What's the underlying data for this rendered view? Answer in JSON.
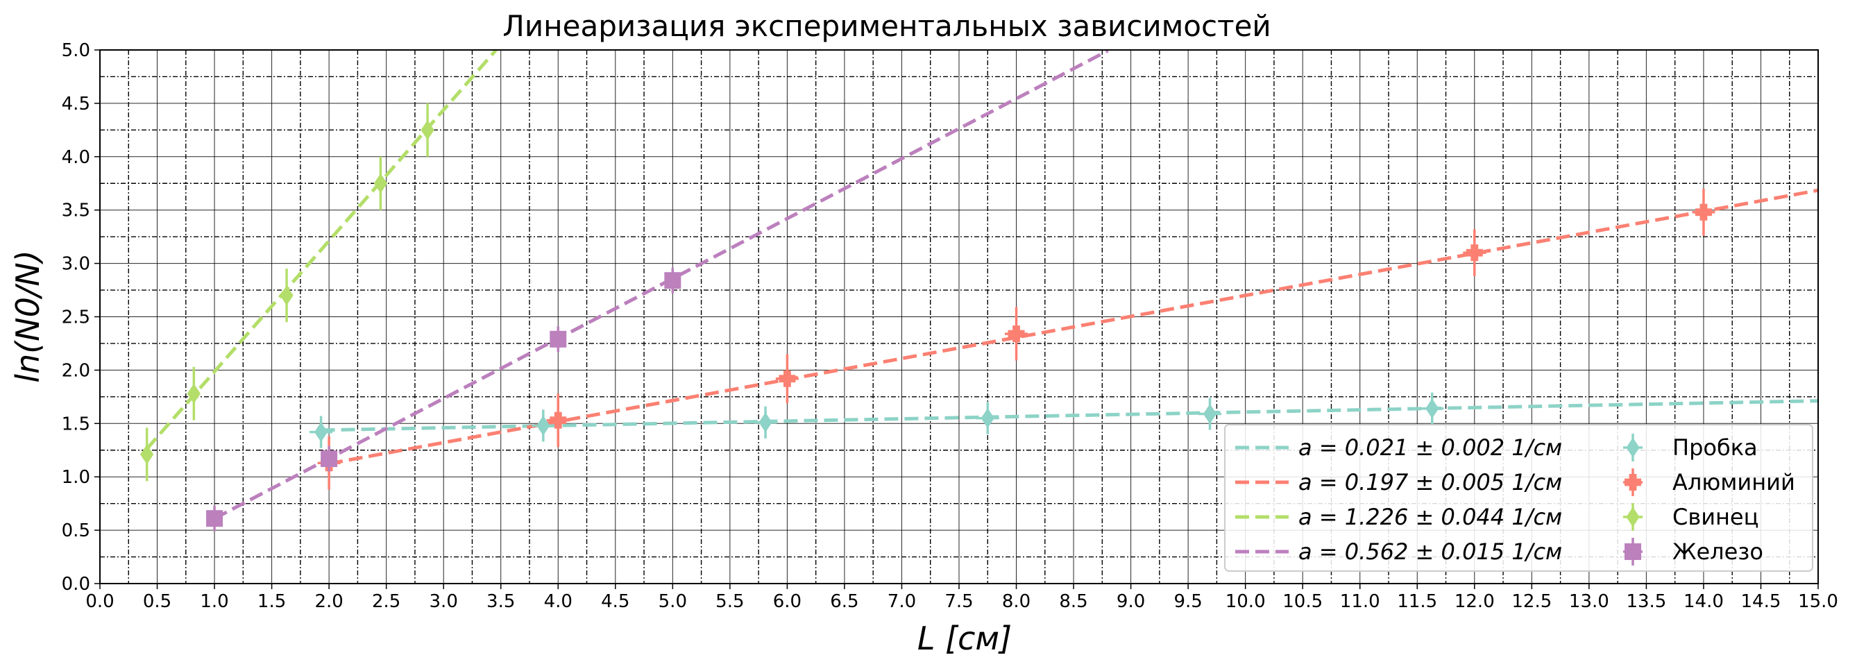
{
  "chart_data": {
    "type": "scatter",
    "title": "Линеаризация экспериментальных зависимостей",
    "xlabel": "L [см]",
    "ylabel": "ln(N0/N)",
    "xlim": [
      0,
      15
    ],
    "ylim": [
      0,
      5
    ],
    "x_ticks": [
      "0.0",
      "0.5",
      "1.0",
      "1.5",
      "2.0",
      "2.5",
      "3.0",
      "3.5",
      "4.0",
      "4.5",
      "5.0",
      "5.5",
      "6.0",
      "6.5",
      "7.0",
      "7.5",
      "8.0",
      "8.5",
      "9.0",
      "9.5",
      "10.0",
      "10.5",
      "11.0",
      "11.5",
      "12.0",
      "12.5",
      "13.0",
      "13.5",
      "14.0",
      "14.5",
      "15.0"
    ],
    "y_ticks": [
      "0.0",
      "0.5",
      "1.0",
      "1.5",
      "2.0",
      "2.5",
      "3.0",
      "3.5",
      "4.0",
      "4.5",
      "5.0"
    ],
    "grid": true,
    "legend_position": "lower-right",
    "series": [
      {
        "name": "Пробка",
        "color": "#8dd3c7",
        "marker": "diamond",
        "x": [
          1.93,
          3.87,
          5.81,
          7.75,
          9.69,
          11.63
        ],
        "y": [
          1.42,
          1.48,
          1.51,
          1.55,
          1.59,
          1.64
        ],
        "xerr": [
          0.1,
          0.1,
          0.1,
          0.1,
          0.1,
          0.1
        ],
        "yerr": [
          0.15,
          0.15,
          0.15,
          0.15,
          0.15,
          0.15
        ],
        "fit": {
          "label": "a = 0.021 ± 0.002 1/см",
          "slope": 0.021,
          "intercept": 1.397,
          "x_range": [
            1.93,
            15.0
          ]
        }
      },
      {
        "name": "Алюминий",
        "color": "#fb8072",
        "marker": "plus",
        "x": [
          2.0,
          4.0,
          6.0,
          8.0,
          12.0,
          14.0
        ],
        "y": [
          1.13,
          1.53,
          1.92,
          2.34,
          3.1,
          3.48
        ],
        "xerr": [
          0.1,
          0.1,
          0.1,
          0.1,
          0.1,
          0.1
        ],
        "yerr": [
          0.25,
          0.25,
          0.23,
          0.25,
          0.22,
          0.22
        ],
        "fit": {
          "label": "a = 0.197 ± 0.005 1/см",
          "slope": 0.197,
          "intercept": 0.73,
          "x_range": [
            2.0,
            15.0
          ]
        }
      },
      {
        "name": "Свинец",
        "color": "#b3de69",
        "marker": "diamond",
        "x": [
          0.41,
          0.82,
          1.63,
          2.45,
          2.86
        ],
        "y": [
          1.21,
          1.78,
          2.7,
          3.75,
          4.25
        ],
        "xerr": [
          0.05,
          0.05,
          0.05,
          0.05,
          0.05
        ],
        "yerr": [
          0.25,
          0.25,
          0.25,
          0.25,
          0.25
        ],
        "fit": {
          "label": "a = 1.226 ± 0.044 1/см",
          "slope": 1.226,
          "intercept": 0.76,
          "x_range": [
            0.41,
            3.46
          ]
        }
      },
      {
        "name": "Железо",
        "color": "#bc80bd",
        "marker": "square",
        "x": [
          1.0,
          2.0,
          4.0,
          5.0
        ],
        "y": [
          0.61,
          1.17,
          2.29,
          2.84
        ],
        "xerr": [
          0.07,
          0.07,
          0.07,
          0.07
        ],
        "yerr": [
          0.12,
          0.12,
          0.12,
          0.12
        ],
        "fit": {
          "label": "a = 0.562 ± 0.015 1/см",
          "slope": 0.562,
          "intercept": 0.048,
          "x_range": [
            1.0,
            8.8
          ]
        }
      }
    ]
  }
}
